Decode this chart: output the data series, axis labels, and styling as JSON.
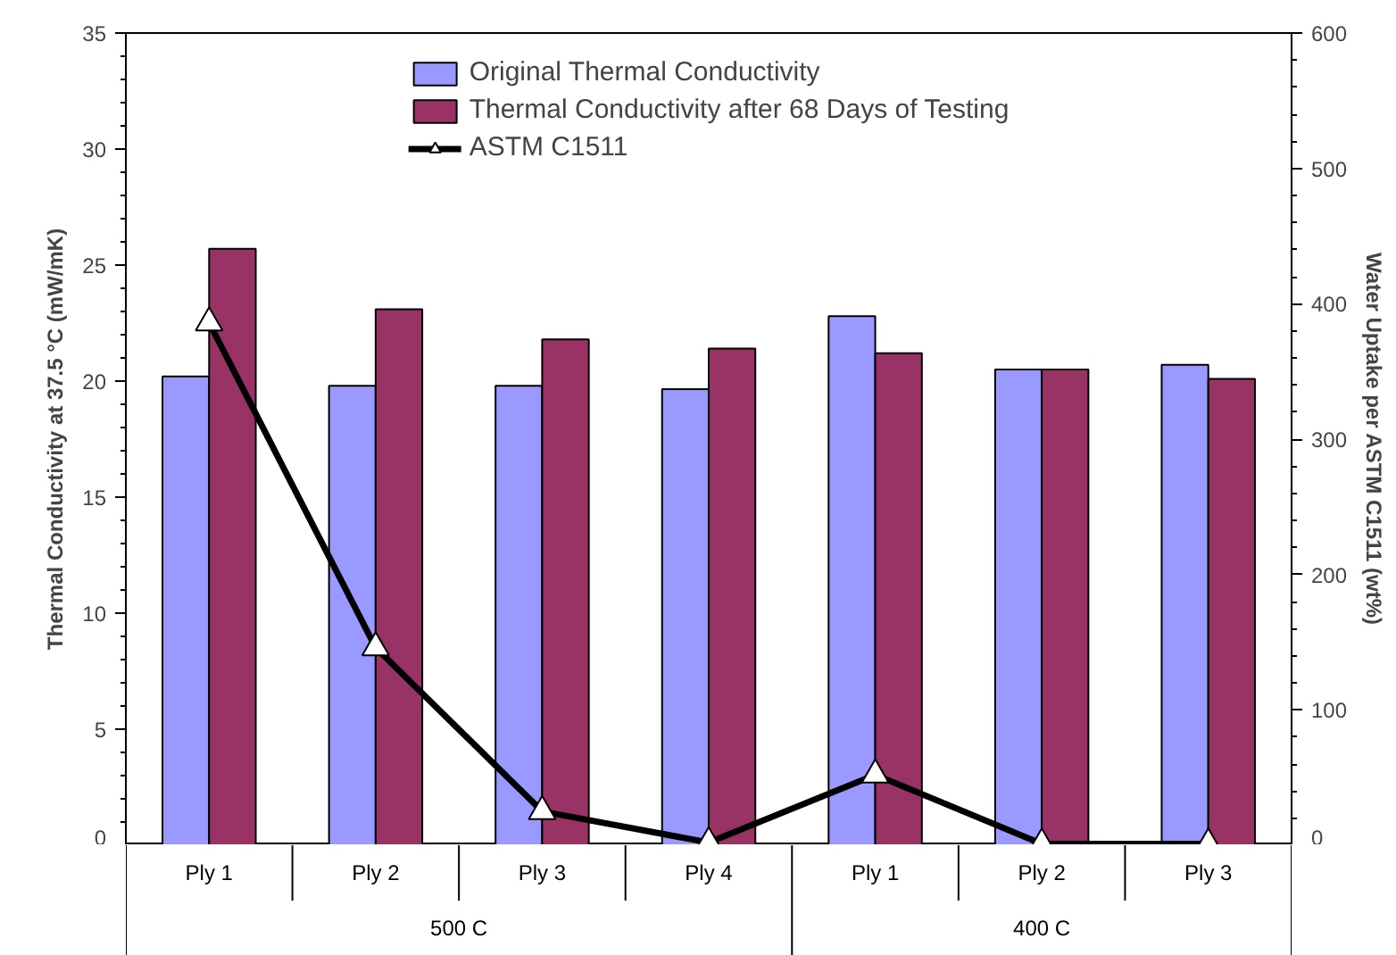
{
  "chart_data": {
    "type": "bar",
    "ylabel": "Thermal Conductivity at 37.5 °C (mW/mK)",
    "y2label": "Water Uptake per ASTM C1511 (wt%)",
    "categories": [
      "Ply 1",
      "Ply 2",
      "Ply 3",
      "Ply 4",
      "Ply 1",
      "Ply 2",
      "Ply 3"
    ],
    "annotations": [
      "500 C",
      "400 C"
    ],
    "series": [
      {
        "name": "Original Thermal Conductivity",
        "color": "#9999ff",
        "values": [
          20.2,
          19.8,
          19.8,
          19.65,
          22.8,
          20.5,
          20.7
        ]
      },
      {
        "name": "Thermal Conductivity after 68 Days of Testing",
        "color": "#993366",
        "values": [
          25.7,
          23.1,
          21.8,
          21.4,
          21.2,
          20.5,
          20.1
        ]
      },
      {
        "name": "ASTM C1511",
        "type": "line",
        "axis": "y2",
        "color": "#000000",
        "marker": "triangle",
        "values": [
          386,
          146,
          25,
          2,
          52,
          1,
          1
        ]
      }
    ],
    "ylim": [
      0,
      35
    ],
    "yticks": [
      0,
      5,
      10,
      15,
      20,
      25,
      30,
      35
    ],
    "y2lim": [
      0,
      600
    ],
    "y2ticks": [
      0,
      100,
      200,
      300,
      400,
      500,
      600
    ],
    "grid": false,
    "legend": "top"
  }
}
